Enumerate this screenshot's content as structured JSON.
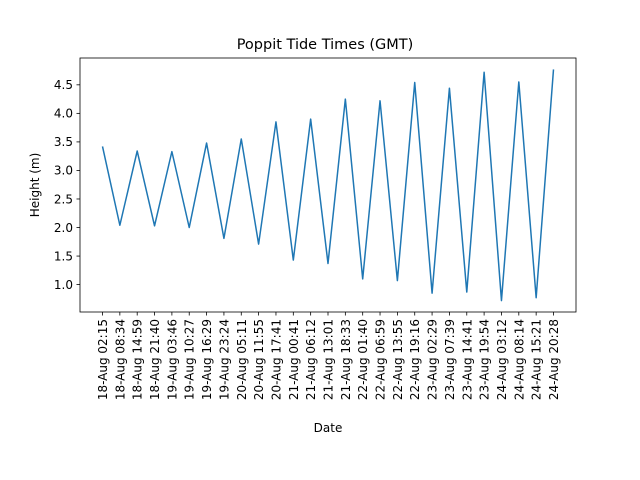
{
  "chart_data": {
    "type": "line",
    "title": "Poppit Tide Times (GMT)",
    "xlabel": "Date",
    "ylabel": "Height (m)",
    "categories": [
      "18-Aug 02:15",
      "18-Aug 08:34",
      "18-Aug 14:59",
      "18-Aug 21:40",
      "19-Aug 03:46",
      "19-Aug 10:27",
      "19-Aug 16:29",
      "19-Aug 23:24",
      "20-Aug 05:11",
      "20-Aug 11:55",
      "20-Aug 17:41",
      "21-Aug 00:41",
      "21-Aug 06:12",
      "21-Aug 13:01",
      "21-Aug 18:33",
      "22-Aug 01:40",
      "22-Aug 06:59",
      "22-Aug 13:55",
      "22-Aug 19:16",
      "23-Aug 02:29",
      "23-Aug 07:39",
      "23-Aug 14:41",
      "23-Aug 19:54",
      "24-Aug 03:12",
      "24-Aug 08:14",
      "24-Aug 15:21",
      "24-Aug 20:28"
    ],
    "series": [
      {
        "color": "#1f77b4",
        "values": [
          3.42,
          2.04,
          3.34,
          2.03,
          3.33,
          2.0,
          3.48,
          1.81,
          3.55,
          1.71,
          3.85,
          1.43,
          3.9,
          1.37,
          4.25,
          1.1,
          4.22,
          1.07,
          4.54,
          0.85,
          4.44,
          0.87,
          4.72,
          0.72,
          4.55,
          0.77,
          4.77
        ]
      }
    ],
    "yticks": [
      "1.0",
      "1.5",
      "2.0",
      "2.5",
      "3.0",
      "3.5",
      "4.0",
      "4.5"
    ],
    "ylim": [
      0.52,
      4.97
    ],
    "grid": false,
    "legend": "none"
  }
}
